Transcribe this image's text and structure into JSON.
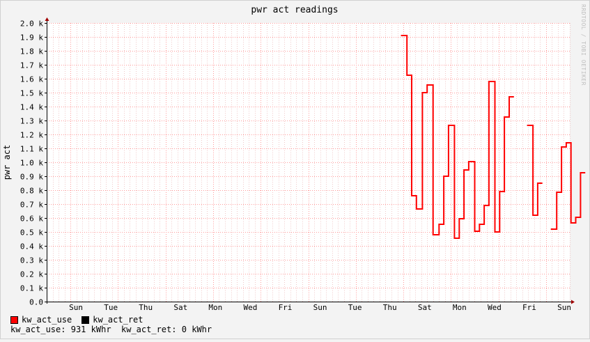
{
  "chart_data": {
    "type": "line",
    "title": "pwr act readings",
    "ylabel": "pwr act",
    "xlabel": "",
    "ylim": [
      0,
      2000
    ],
    "yticks": [
      {
        "value": 0,
        "label": "0.0"
      },
      {
        "value": 100,
        "label": "0.1 k"
      },
      {
        "value": 200,
        "label": "0.2 k"
      },
      {
        "value": 300,
        "label": "0.3 k"
      },
      {
        "value": 400,
        "label": "0.4 k"
      },
      {
        "value": 500,
        "label": "0.5 k"
      },
      {
        "value": 600,
        "label": "0.6 k"
      },
      {
        "value": 700,
        "label": "0.7 k"
      },
      {
        "value": 800,
        "label": "0.8 k"
      },
      {
        "value": 900,
        "label": "0.9 k"
      },
      {
        "value": 1000,
        "label": "1.0 k"
      },
      {
        "value": 1100,
        "label": "1.1 k"
      },
      {
        "value": 1200,
        "label": "1.2 k"
      },
      {
        "value": 1300,
        "label": "1.3 k"
      },
      {
        "value": 1400,
        "label": "1.4 k"
      },
      {
        "value": 1500,
        "label": "1.5 k"
      },
      {
        "value": 1600,
        "label": "1.6 k"
      },
      {
        "value": 1700,
        "label": "1.7 k"
      },
      {
        "value": 1800,
        "label": "1.8 k"
      },
      {
        "value": 1900,
        "label": "1.9 k"
      },
      {
        "value": 2000,
        "label": "2.0 k"
      }
    ],
    "xlim": [
      0,
      22
    ],
    "xticks": [
      "Sun",
      "Tue",
      "Thu",
      "Sat",
      "Mon",
      "Wed",
      "Fri",
      "Sun",
      "Tue",
      "Thu",
      "Sat",
      "Mon",
      "Wed",
      "Fri",
      "Sun"
    ],
    "grid": true,
    "series": [
      {
        "name": "kw_act_use",
        "color": "#ff0000",
        "segments": [
          [
            [
              14.9,
              1910
            ],
            [
              15.15,
              1910
            ],
            [
              15.15,
              1625
            ],
            [
              15.35,
              1625
            ],
            [
              15.35,
              760
            ],
            [
              15.55,
              760
            ],
            [
              15.55,
              665
            ],
            [
              15.8,
              665
            ],
            [
              15.8,
              1500
            ],
            [
              16.0,
              1500
            ],
            [
              16.0,
              1555
            ],
            [
              16.25,
              1555
            ],
            [
              16.25,
              480
            ],
            [
              16.5,
              480
            ],
            [
              16.5,
              555
            ],
            [
              16.7,
              555
            ],
            [
              16.7,
              900
            ],
            [
              16.9,
              900
            ],
            [
              16.9,
              1265
            ],
            [
              17.15,
              1265
            ],
            [
              17.15,
              455
            ],
            [
              17.35,
              455
            ],
            [
              17.35,
              595
            ],
            [
              17.55,
              595
            ],
            [
              17.55,
              945
            ],
            [
              17.75,
              945
            ],
            [
              17.75,
              1005
            ],
            [
              18.0,
              1005
            ],
            [
              18.0,
              505
            ],
            [
              18.2,
              505
            ],
            [
              18.2,
              555
            ],
            [
              18.4,
              555
            ],
            [
              18.4,
              690
            ],
            [
              18.6,
              690
            ],
            [
              18.6,
              1580
            ],
            [
              18.85,
              1580
            ],
            [
              18.85,
              500
            ],
            [
              19.05,
              500
            ],
            [
              19.05,
              790
            ],
            [
              19.25,
              790
            ],
            [
              19.25,
              1325
            ],
            [
              19.45,
              1325
            ],
            [
              19.45,
              1470
            ],
            [
              19.65,
              1470
            ]
          ],
          [
            [
              20.2,
              1265
            ],
            [
              20.45,
              1265
            ],
            [
              20.45,
              620
            ],
            [
              20.65,
              620
            ],
            [
              20.65,
              850
            ],
            [
              20.85,
              850
            ]
          ],
          [
            [
              21.2,
              520
            ],
            [
              21.45,
              520
            ],
            [
              21.45,
              785
            ],
            [
              21.65,
              785
            ],
            [
              21.65,
              1110
            ],
            [
              21.85,
              1110
            ],
            [
              21.85,
              1140
            ],
            [
              22.05,
              1140
            ],
            [
              22.05,
              565
            ],
            [
              22.25,
              565
            ],
            [
              22.25,
              605
            ],
            [
              22.45,
              605
            ],
            [
              22.45,
              925
            ],
            [
              22.65,
              925
            ]
          ]
        ]
      },
      {
        "name": "kw_act_ret",
        "color": "#000000",
        "segments": []
      }
    ]
  },
  "legend": {
    "items": [
      {
        "label": "kw_act_use",
        "color": "#ff0000"
      },
      {
        "label": "kw_act_ret",
        "color": "#000000"
      }
    ]
  },
  "summary": {
    "use_label": "kw_act_use:",
    "use_value": "931",
    "use_unit": "kWhr",
    "ret_label": "kw_act_ret:",
    "ret_value": "0",
    "ret_unit": "kWhr"
  },
  "credit": "RRDTOOL / TOBI OETIKER"
}
